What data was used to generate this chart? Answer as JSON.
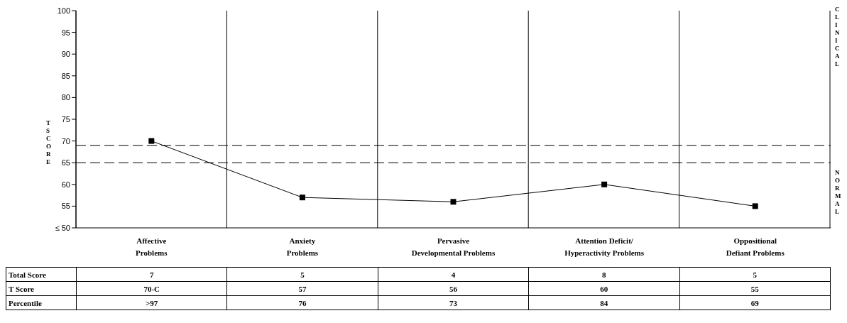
{
  "chart_data": {
    "type": "line",
    "ylabel": "T SCORE",
    "categories": [
      "Affective Problems",
      "Anxiety Problems",
      "Pervasive Developmental Problems",
      "Attention Deficit/ Hyperactivity Problems",
      "Oppositional Defiant Problems"
    ],
    "values": [
      70,
      57,
      56,
      60,
      55
    ],
    "value_labels": [
      "70-C",
      "57",
      "56",
      "60",
      "55"
    ],
    "color": "#000000",
    "marker": "square",
    "grid": "x",
    "ylim": [
      50,
      100
    ],
    "yticks": [
      {
        "value": 50,
        "label": "≤ 50"
      },
      55,
      60,
      65,
      70,
      75,
      80,
      85,
      90,
      95,
      100
    ],
    "ref_lines": [
      {
        "axis": "y",
        "value": 69,
        "color": "#000000",
        "line_style": "dashed"
      },
      {
        "axis": "y",
        "value": 65,
        "color": "#000000",
        "line_style": "dashed"
      }
    ],
    "annotations": [
      "Total Score",
      "7",
      "5",
      "4",
      "8",
      "5",
      "T Score",
      "Percentile",
      ">97",
      "76",
      "73",
      "84",
      "69",
      "CLINICAL",
      "NORMAL"
    ]
  }
}
